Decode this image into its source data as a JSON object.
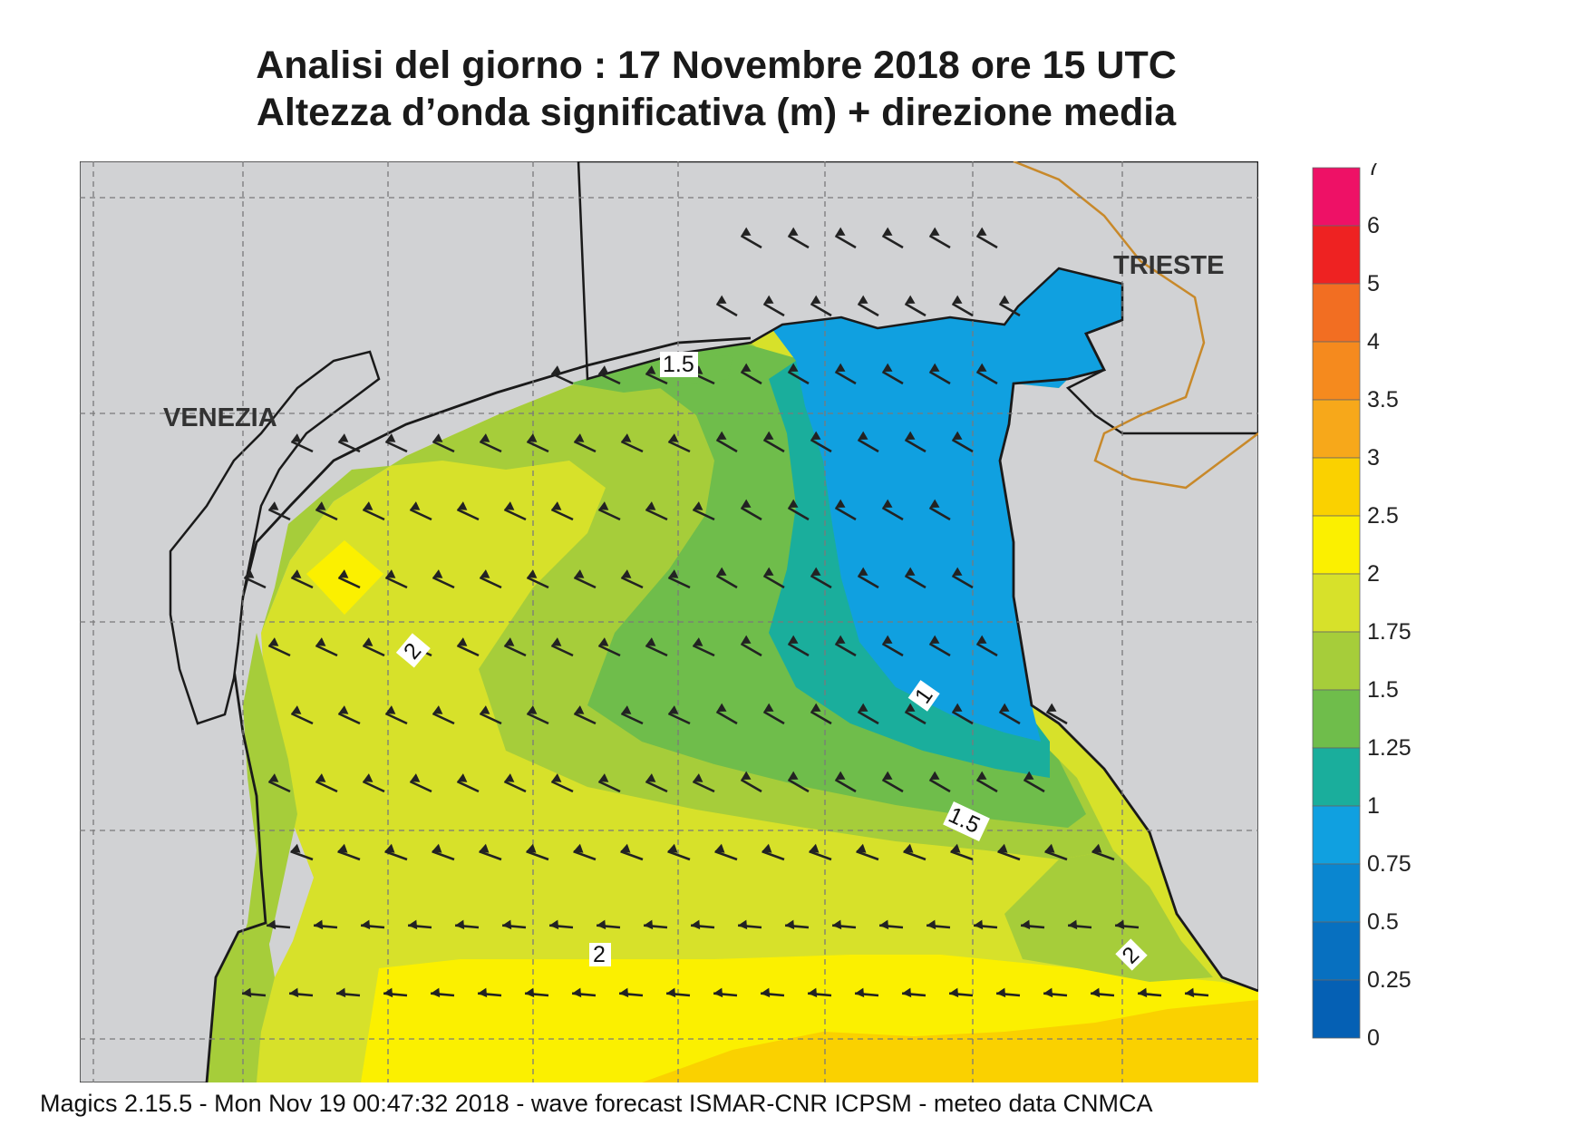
{
  "title": {
    "line1": "Analisi del giorno :  17 Novembre  2018   ore 15 UTC",
    "line2": "Altezza d’onda significativa (m) + direzione media"
  },
  "places": {
    "venezia": "VENEZIA",
    "trieste": "TRIESTE"
  },
  "contour_labels": [
    "1.5",
    "2",
    "1",
    "1.5",
    "2",
    "2"
  ],
  "legend": {
    "levels": [
      "7",
      "6",
      "5",
      "4",
      "3.5",
      "3",
      "2.5",
      "2",
      "1.75",
      "1.5",
      "1.25",
      "1",
      "0.75",
      "0.5",
      "0.25",
      "0"
    ],
    "colors": [
      "#ee1166",
      "#ee2222",
      "#f26e22",
      "#f58a1e",
      "#f7a81a",
      "#fad100",
      "#fbf000",
      "#d7e12a",
      "#a6cd3a",
      "#6fbd4b",
      "#1aae9c",
      "#10a0e0",
      "#0a86d0",
      "#0770c0",
      "#0560b4"
    ]
  },
  "colors": {
    "land": "#d1d2d4",
    "sea_base": "#d7e12a",
    "coast": "#1a1a1a",
    "border": "#c8892a",
    "arrow": "#222222"
  },
  "footer": "Magics 2.15.5 - Mon Nov 19 00:47:32 2018 - wave forecast  ISMAR-CNR  ICPSM - meteo data   CNMCA"
}
